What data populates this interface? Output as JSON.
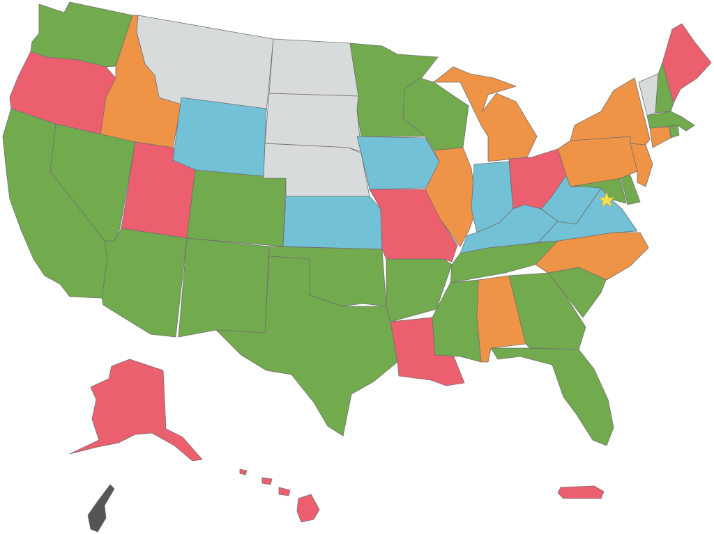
{
  "legend_colors": {
    "green": "#72aa4e",
    "orange": "#ef9347",
    "red": "#ec5f6f",
    "blue": "#72c1d6",
    "gray": "#d8dbdc",
    "dark": "#555555",
    "star": "#f4e24b"
  },
  "states": [
    {
      "id": "WA",
      "color": "green"
    },
    {
      "id": "OR",
      "color": "red"
    },
    {
      "id": "CA",
      "color": "green"
    },
    {
      "id": "ID",
      "color": "orange"
    },
    {
      "id": "NV",
      "color": "green"
    },
    {
      "id": "UT",
      "color": "red"
    },
    {
      "id": "AZ",
      "color": "green"
    },
    {
      "id": "MT",
      "color": "gray"
    },
    {
      "id": "WY",
      "color": "blue"
    },
    {
      "id": "CO",
      "color": "green"
    },
    {
      "id": "NM",
      "color": "green"
    },
    {
      "id": "ND",
      "color": "gray"
    },
    {
      "id": "SD",
      "color": "gray"
    },
    {
      "id": "NE",
      "color": "gray"
    },
    {
      "id": "KS",
      "color": "blue"
    },
    {
      "id": "OK",
      "color": "green"
    },
    {
      "id": "TX",
      "color": "green"
    },
    {
      "id": "MN",
      "color": "green"
    },
    {
      "id": "IA",
      "color": "blue"
    },
    {
      "id": "MO",
      "color": "red"
    },
    {
      "id": "AR",
      "color": "green"
    },
    {
      "id": "LA",
      "color": "red"
    },
    {
      "id": "WI",
      "color": "green"
    },
    {
      "id": "IL",
      "color": "orange"
    },
    {
      "id": "MI",
      "color": "orange"
    },
    {
      "id": "IN",
      "color": "blue"
    },
    {
      "id": "OH",
      "color": "red"
    },
    {
      "id": "KY",
      "color": "blue"
    },
    {
      "id": "TN",
      "color": "green"
    },
    {
      "id": "MS",
      "color": "green"
    },
    {
      "id": "AL",
      "color": "orange"
    },
    {
      "id": "GA",
      "color": "green"
    },
    {
      "id": "FL",
      "color": "green"
    },
    {
      "id": "SC",
      "color": "green"
    },
    {
      "id": "NC",
      "color": "orange"
    },
    {
      "id": "VA",
      "color": "blue"
    },
    {
      "id": "WV",
      "color": "blue"
    },
    {
      "id": "MD",
      "color": "green"
    },
    {
      "id": "DE",
      "color": "green"
    },
    {
      "id": "NJ",
      "color": "orange"
    },
    {
      "id": "PA",
      "color": "orange"
    },
    {
      "id": "NY",
      "color": "orange"
    },
    {
      "id": "CT",
      "color": "orange"
    },
    {
      "id": "RI",
      "color": "green"
    },
    {
      "id": "MA",
      "color": "green"
    },
    {
      "id": "VT",
      "color": "gray"
    },
    {
      "id": "NH",
      "color": "green"
    },
    {
      "id": "ME",
      "color": "red"
    },
    {
      "id": "AK",
      "color": "red"
    },
    {
      "id": "HI",
      "color": "red"
    },
    {
      "id": "PR",
      "color": "red"
    },
    {
      "id": "GU",
      "color": "dark"
    }
  ],
  "marker": {
    "name": "dc-star",
    "color": "star"
  }
}
